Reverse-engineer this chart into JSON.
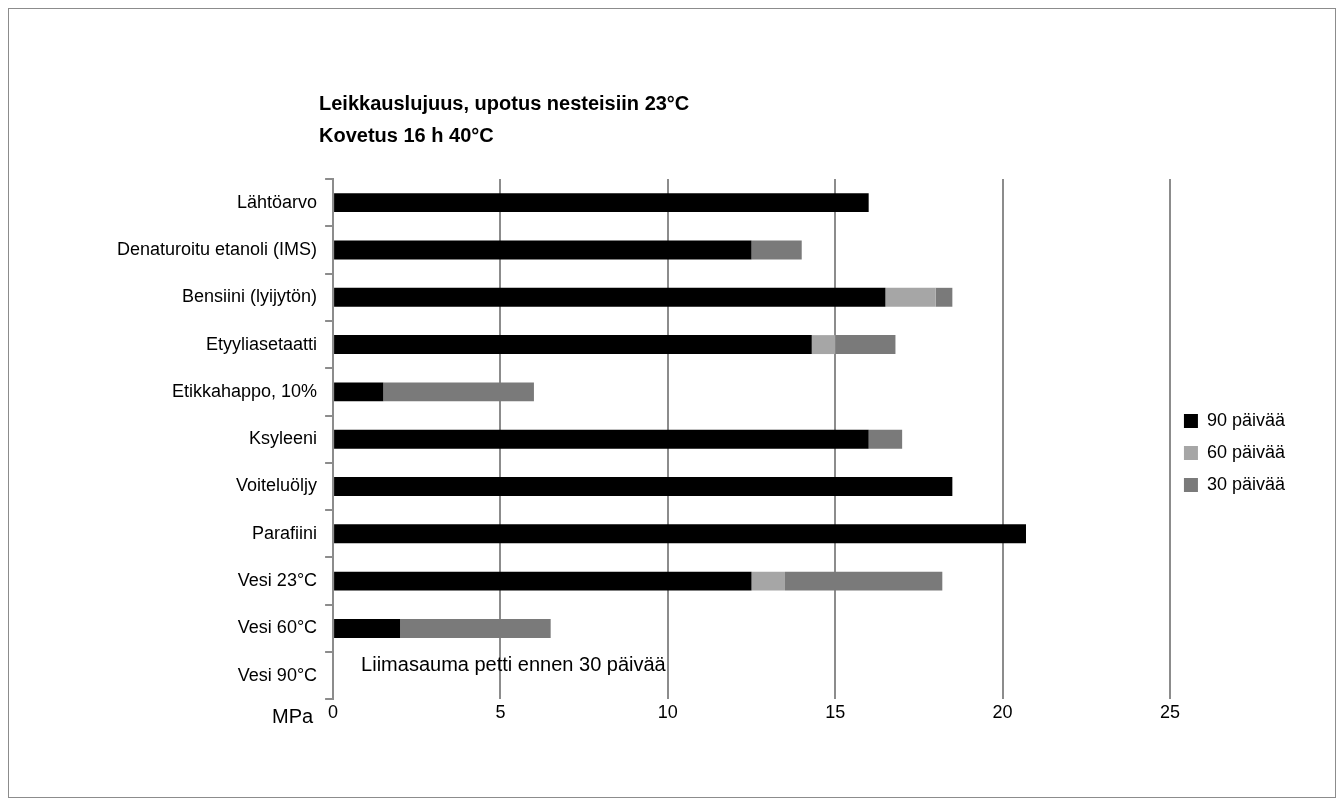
{
  "chart_data": {
    "type": "bar",
    "orientation": "horizontal",
    "stacked": true,
    "title": "Leikkauslujuus, upotus nesteisiin 23°C\nKovetus 16 h 40°C",
    "xlabel": "MPa",
    "categories": [
      "Lähtöarvo",
      "Denaturoitu etanoli (IMS)",
      "Bensiini (lyijytön)",
      "Etyyliasetaatti",
      "Etikkahappo, 10%",
      "Ksyleeni",
      "Voiteluöljy",
      "Parafiini",
      "Vesi 23°C",
      "Vesi 60°C",
      "Vesi 90°C"
    ],
    "series": [
      {
        "name": "90 päivää",
        "color": "#000000",
        "values": [
          16,
          12.5,
          16.5,
          14.3,
          1.5,
          16,
          18.5,
          20.7,
          12.5,
          2,
          null
        ]
      },
      {
        "name": "60 päivää",
        "color": "#a6a6a6",
        "values": [
          null,
          null,
          1.5,
          0.7,
          null,
          null,
          null,
          null,
          1,
          null,
          null
        ]
      },
      {
        "name": "30 päivää",
        "color": "#7a7a7a",
        "values": [
          null,
          1.5,
          0.5,
          1.8,
          4.5,
          1,
          null,
          null,
          4.7,
          4.5,
          null
        ]
      }
    ],
    "xlim": [
      0,
      25
    ],
    "xticks": [
      0,
      5,
      10,
      15,
      20,
      25
    ],
    "grid": "x",
    "legend": "right",
    "annotations": [
      "Liimasauma petti ennen 30 päivää"
    ]
  }
}
